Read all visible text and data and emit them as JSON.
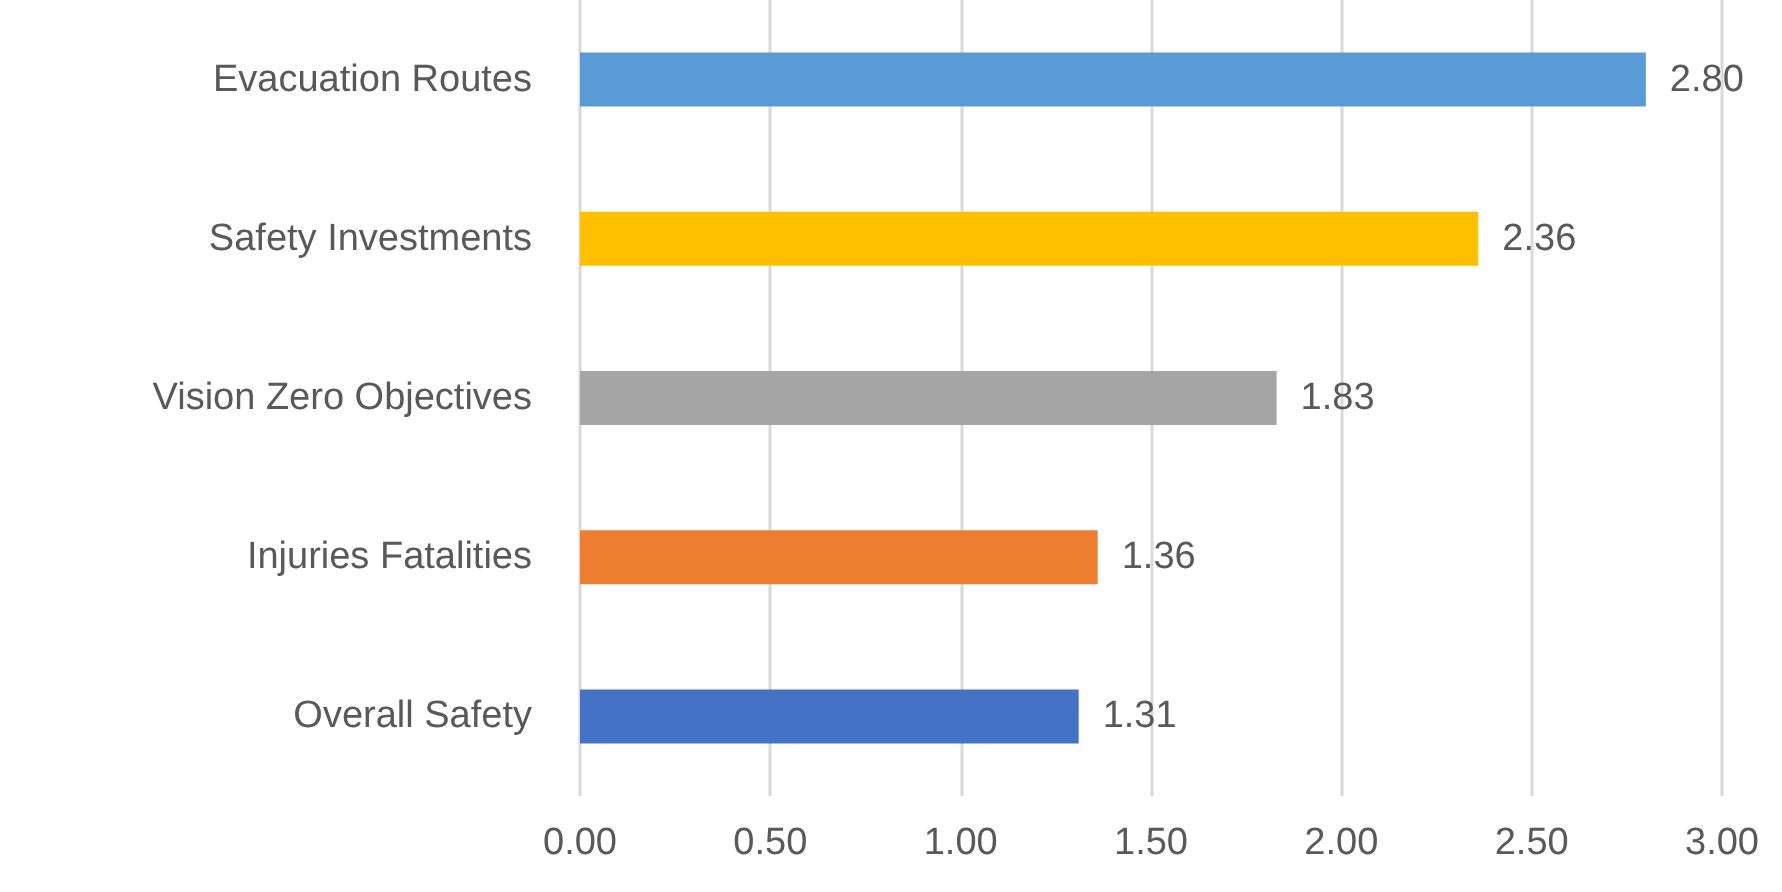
{
  "chart_data": {
    "type": "bar",
    "orientation": "horizontal",
    "categories": [
      "Evacuation Routes",
      "Safety Investments",
      "Vision Zero Objectives",
      "Injuries Fatalities",
      "Overall Safety"
    ],
    "values": [
      2.8,
      2.36,
      1.83,
      1.36,
      1.31
    ],
    "colors": [
      "#5b9bd5",
      "#ffc000",
      "#a5a5a5",
      "#ed7d31",
      "#4472c4"
    ],
    "value_labels": [
      "2.80",
      "2.36",
      "1.83",
      "1.36",
      "1.31"
    ],
    "xlim": [
      0,
      3
    ],
    "xticks": [
      {
        "value": 0,
        "label": "0.00"
      },
      {
        "value": 0.5,
        "label": "0.50"
      },
      {
        "value": 1,
        "label": "1.00"
      },
      {
        "value": 1.5,
        "label": "1.50"
      },
      {
        "value": 2,
        "label": "2.00"
      },
      {
        "value": 2.5,
        "label": "2.50"
      },
      {
        "value": 3,
        "label": "3.00"
      }
    ],
    "grid": "x"
  }
}
